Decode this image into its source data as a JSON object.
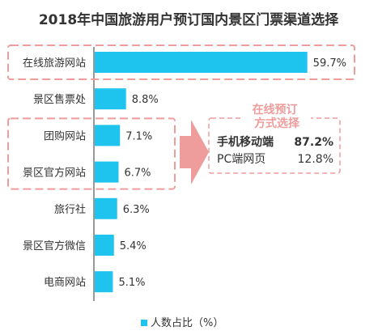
{
  "chart_data": {
    "type": "bar",
    "orientation": "horizontal",
    "title": "2018年中国旅游用户预订国内景区门票渠道选择",
    "categories": [
      "在线旅游网站",
      "景区售票处",
      "团购网站",
      "景区官方网站",
      "旅行社",
      "景区官方微信",
      "电商网站"
    ],
    "values": [
      59.7,
      8.8,
      7.1,
      6.7,
      6.3,
      5.4,
      5.1
    ],
    "value_labels": [
      "59.7%",
      "8.8%",
      "7.1%",
      "6.7%",
      "6.3%",
      "5.4%",
      "5.1%"
    ],
    "legend": {
      "label": "人数占比（%）",
      "placement": "bottom-center"
    },
    "xlim": [
      0,
      62
    ],
    "grid": false,
    "highlighted_groups": [
      [
        0
      ],
      [
        2,
        3
      ]
    ],
    "annotation": {
      "title": "在线预订方式选择",
      "rows": [
        {
          "label": "手机移动端",
          "value": "87.2%"
        },
        {
          "label": "PC端网页",
          "value": "12.8%"
        }
      ]
    }
  },
  "colors": {
    "bar": "#1ec3ee",
    "highlight": "#ee9c9c",
    "axis": "#333333",
    "text": "#333333"
  }
}
